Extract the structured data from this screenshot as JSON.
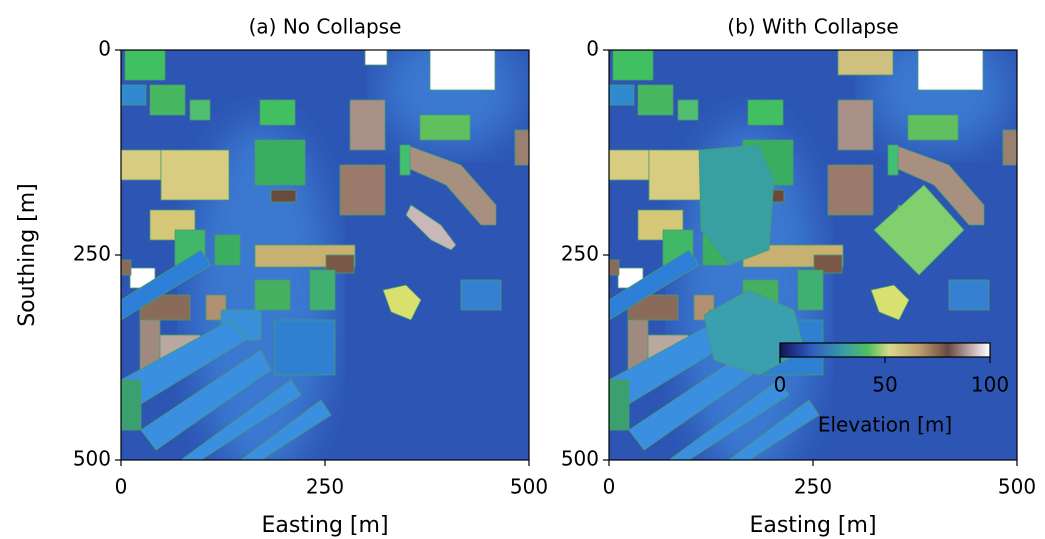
{
  "chart_data": [
    {
      "type": "image",
      "title": "(a) No Collapse",
      "x_label": "Easting [m]",
      "y_label": "Southing [m]",
      "xlim": [
        0,
        500
      ],
      "ylim": [
        500,
        0
      ],
      "xticks": [
        0,
        250,
        500
      ],
      "yticks": [
        0,
        250,
        500
      ]
    },
    {
      "type": "image",
      "title": "(b) With Collapse",
      "x_label": "Easting [m]",
      "xlim": [
        0,
        500
      ],
      "ylim": [
        500,
        0
      ],
      "xticks": [
        0,
        250,
        500
      ],
      "yticks": [
        0,
        250,
        500
      ],
      "colorbar": {
        "label": "Elevation [m]",
        "lim": [
          0,
          100
        ],
        "ticks": [
          0,
          50,
          100
        ]
      }
    }
  ]
}
